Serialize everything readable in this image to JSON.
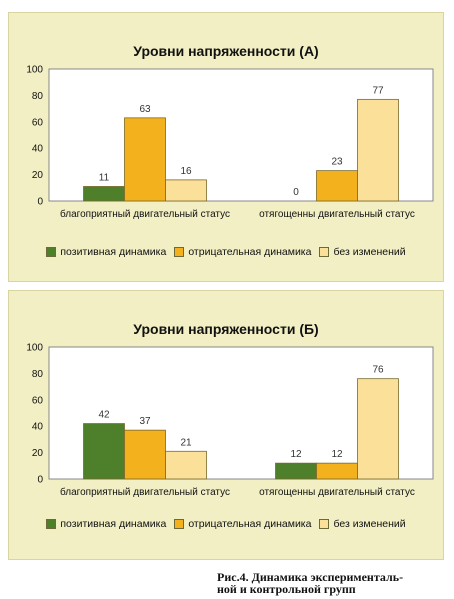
{
  "colors": {
    "positive": "#4e7f2b",
    "negative": "#f4b11e",
    "nochange": "#fbe09a",
    "plot_bg": "#ffffff",
    "panel_bg": "#f1efc3"
  },
  "legend": [
    "позитивная динамика",
    "отрицательная динамика",
    "без изменений"
  ],
  "caption": [
    "Рис.4. Динамика эксперименталь-",
    "ной и контрольной групп"
  ],
  "chart_data": [
    {
      "type": "bar",
      "title": "Уровни напряженности (А)",
      "categories": [
        "благоприятный двигательный статус",
        "отягощенны двигательный статус"
      ],
      "series": [
        {
          "name": "позитивная динамика",
          "values": [
            11,
            0
          ]
        },
        {
          "name": "отрицательная динамика",
          "values": [
            63,
            23
          ]
        },
        {
          "name": "без изменений",
          "values": [
            16,
            77
          ]
        }
      ],
      "ylim": [
        0,
        100
      ],
      "yticks": [
        "0",
        "20",
        "40",
        "60",
        "80",
        "100"
      ],
      "grid": false,
      "legend_position": "bottom"
    },
    {
      "type": "bar",
      "title": "Уровни напряженности (Б)",
      "categories": [
        "благоприятный двигательный статус",
        "отягощенны двигательный статус"
      ],
      "series": [
        {
          "name": "позитивная динамика",
          "values": [
            42,
            12
          ]
        },
        {
          "name": "отрицательная динамика",
          "values": [
            37,
            12
          ]
        },
        {
          "name": "без изменений",
          "values": [
            21,
            76
          ]
        }
      ],
      "ylim": [
        0,
        100
      ],
      "yticks": [
        "0",
        "20",
        "40",
        "60",
        "80",
        "100"
      ],
      "grid": false,
      "legend_position": "bottom"
    }
  ]
}
